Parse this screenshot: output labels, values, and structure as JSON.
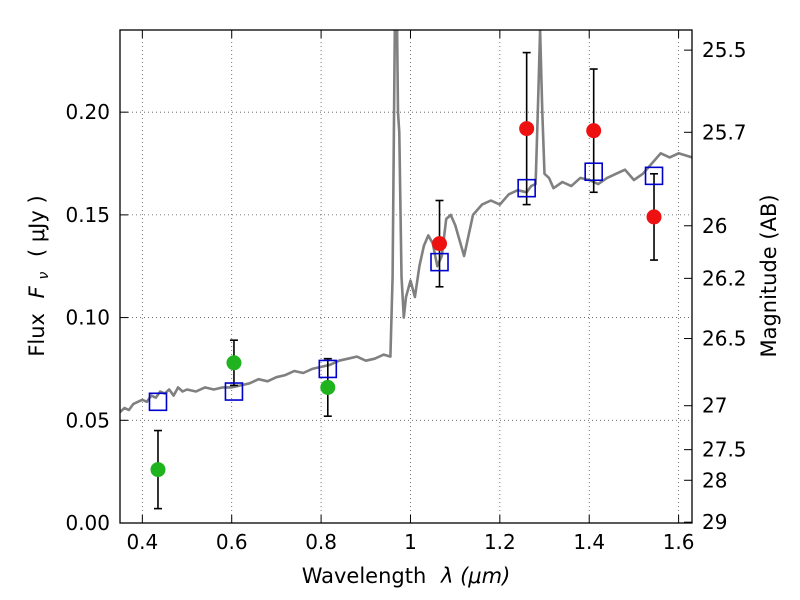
{
  "chart_data": {
    "type": "scatter",
    "xlabel": "Wavelength",
    "xlabel_math": "λ (μm)",
    "ylabel": "Flux",
    "ylabel_math": "( μJy )",
    "ylabel_symbol": "F",
    "ylabel_subscript": "ν",
    "y2label": "Magnitude (AB)",
    "xlim": [
      0.35,
      1.63
    ],
    "ylim": [
      0.0,
      0.24
    ],
    "grid": true,
    "x_ticks": [
      0.4,
      0.6,
      0.8,
      1.0,
      1.2,
      1.4,
      1.6
    ],
    "x_tick_labels": [
      "0.4",
      "0.6",
      "0.8",
      "1",
      "1.2",
      "1.4",
      "1.6"
    ],
    "y_ticks": [
      0.0,
      0.05,
      0.1,
      0.15,
      0.2
    ],
    "y_tick_labels": [
      "0.00",
      "0.05",
      "0.10",
      "0.15",
      "0.20"
    ],
    "y2_ticks": [
      {
        "flux": 0.0004,
        "label": "29"
      },
      {
        "flux": 0.0208,
        "label": "28"
      },
      {
        "flux": 0.0357,
        "label": "27.5"
      },
      {
        "flux": 0.0571,
        "label": "27"
      },
      {
        "flux": 0.0898,
        "label": "26.5"
      },
      {
        "flux": 0.1191,
        "label": "26.2"
      },
      {
        "flux": 0.1447,
        "label": "26"
      },
      {
        "flux": 0.1902,
        "label": "25.7"
      },
      {
        "flux": 0.2302,
        "label": "25.5"
      }
    ],
    "colors": {
      "model": "#808080",
      "green": "#1fb31f",
      "red": "#ee1111",
      "model_box": "#0000cc",
      "error": "#000000",
      "grid": "#555555"
    },
    "series": [
      {
        "name": "model spectrum",
        "style": "line",
        "color": "#808080",
        "x": [
          0.35,
          0.36,
          0.37,
          0.38,
          0.39,
          0.4,
          0.41,
          0.42,
          0.43,
          0.44,
          0.45,
          0.46,
          0.47,
          0.48,
          0.49,
          0.5,
          0.52,
          0.54,
          0.56,
          0.58,
          0.6,
          0.62,
          0.64,
          0.66,
          0.68,
          0.7,
          0.72,
          0.74,
          0.76,
          0.78,
          0.8,
          0.82,
          0.84,
          0.86,
          0.88,
          0.9,
          0.92,
          0.94,
          0.955,
          0.96,
          0.965,
          0.968,
          0.97,
          0.972,
          0.975,
          0.98,
          0.985,
          0.99,
          1.0,
          1.01,
          1.02,
          1.03,
          1.04,
          1.05,
          1.06,
          1.07,
          1.08,
          1.09,
          1.1,
          1.12,
          1.14,
          1.16,
          1.18,
          1.2,
          1.22,
          1.24,
          1.26,
          1.27,
          1.28,
          1.285,
          1.29,
          1.295,
          1.3,
          1.31,
          1.32,
          1.34,
          1.36,
          1.38,
          1.4,
          1.42,
          1.44,
          1.46,
          1.48,
          1.5,
          1.52,
          1.54,
          1.56,
          1.58,
          1.6,
          1.63
        ],
        "y": [
          0.054,
          0.056,
          0.055,
          0.058,
          0.059,
          0.06,
          0.059,
          0.062,
          0.061,
          0.064,
          0.063,
          0.065,
          0.062,
          0.066,
          0.064,
          0.065,
          0.064,
          0.066,
          0.065,
          0.066,
          0.066,
          0.067,
          0.068,
          0.07,
          0.069,
          0.071,
          0.072,
          0.074,
          0.073,
          0.075,
          0.076,
          0.077,
          0.079,
          0.08,
          0.081,
          0.079,
          0.08,
          0.082,
          0.081,
          0.12,
          0.24,
          0.24,
          0.24,
          0.2,
          0.19,
          0.12,
          0.1,
          0.11,
          0.118,
          0.11,
          0.125,
          0.135,
          0.14,
          0.136,
          0.125,
          0.13,
          0.148,
          0.15,
          0.145,
          0.13,
          0.15,
          0.155,
          0.157,
          0.155,
          0.16,
          0.162,
          0.161,
          0.164,
          0.165,
          0.2,
          0.24,
          0.2,
          0.17,
          0.168,
          0.163,
          0.166,
          0.164,
          0.168,
          0.167,
          0.165,
          0.168,
          0.17,
          0.172,
          0.167,
          0.17,
          0.175,
          0.18,
          0.178,
          0.18,
          0.178
        ]
      },
      {
        "name": "green detections",
        "style": "circle",
        "color": "#1fb31f",
        "points": [
          {
            "x": 0.435,
            "y": 0.026,
            "err_lo": 0.007,
            "err_hi": 0.045
          },
          {
            "x": 0.605,
            "y": 0.078,
            "err_lo": 0.067,
            "err_hi": 0.089
          },
          {
            "x": 0.815,
            "y": 0.066,
            "err_lo": 0.052,
            "err_hi": 0.08
          }
        ]
      },
      {
        "name": "red detections",
        "style": "circle",
        "color": "#ee1111",
        "points": [
          {
            "x": 1.065,
            "y": 0.136,
            "err_lo": 0.115,
            "err_hi": 0.157
          },
          {
            "x": 1.26,
            "y": 0.192,
            "err_lo": 0.155,
            "err_hi": 0.229
          },
          {
            "x": 1.41,
            "y": 0.191,
            "err_lo": 0.161,
            "err_hi": 0.221
          },
          {
            "x": 1.545,
            "y": 0.149,
            "err_lo": 0.128,
            "err_hi": 0.17
          }
        ]
      },
      {
        "name": "model photometry",
        "style": "square",
        "color": "#0000cc",
        "points": [
          {
            "x": 0.435,
            "y": 0.059
          },
          {
            "x": 0.605,
            "y": 0.064
          },
          {
            "x": 0.815,
            "y": 0.075
          },
          {
            "x": 1.065,
            "y": 0.127
          },
          {
            "x": 1.26,
            "y": 0.163
          },
          {
            "x": 1.41,
            "y": 0.171
          },
          {
            "x": 1.545,
            "y": 0.169
          }
        ]
      }
    ]
  }
}
